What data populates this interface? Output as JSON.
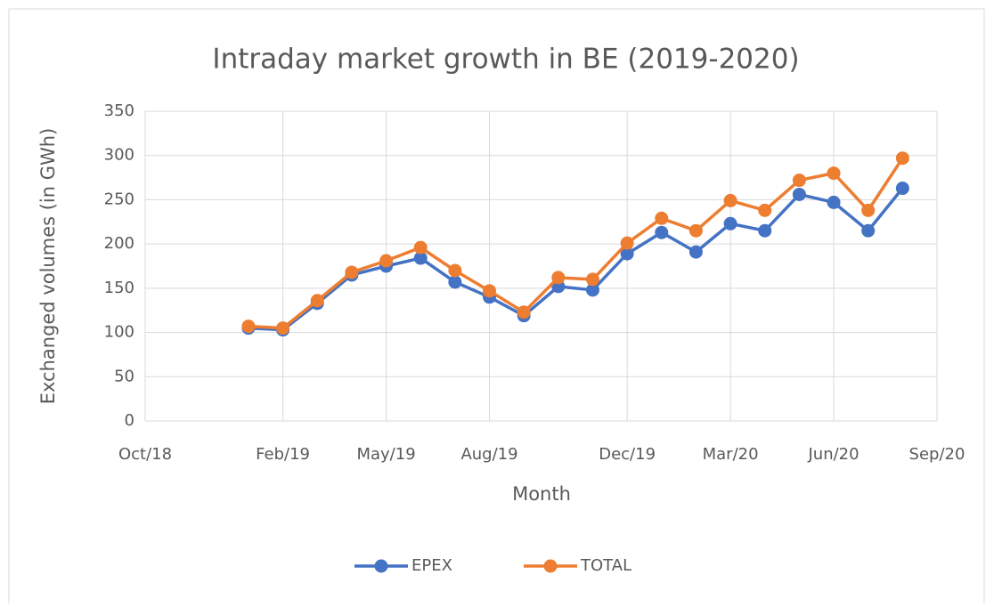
{
  "chart_data": {
    "type": "line",
    "title": "Intraday market growth in BE (2019-2020)",
    "xlabel": "Month",
    "ylabel": "Exchanged volumes (in GWh)",
    "x": [
      "2019-01",
      "2019-02",
      "2019-03",
      "2019-04",
      "2019-05",
      "2019-06",
      "2019-07",
      "2019-08",
      "2019-09",
      "2019-10",
      "2019-11",
      "2019-12",
      "2020-01",
      "2020-02",
      "2020-03",
      "2020-04",
      "2020-05",
      "2020-06",
      "2020-07",
      "2020-08"
    ],
    "series": [
      {
        "name": "EPEX",
        "color": "#4472c4",
        "values": [
          105,
          103,
          133,
          165,
          175,
          184,
          157,
          140,
          119,
          152,
          148,
          189,
          213,
          191,
          223,
          215,
          256,
          247,
          215,
          263
        ]
      },
      {
        "name": "TOTAL",
        "color": "#ed7d31",
        "values": [
          107,
          105,
          136,
          168,
          181,
          196,
          170,
          147,
          123,
          162,
          160,
          201,
          229,
          215,
          249,
          238,
          272,
          280,
          238,
          297
        ]
      }
    ],
    "xlim": [
      "2018-10",
      "2020-09"
    ],
    "xticks": [
      {
        "value": "2018-10",
        "label": "Oct/18"
      },
      {
        "value": "2019-02",
        "label": "Feb/19"
      },
      {
        "value": "2019-05",
        "label": "May/19"
      },
      {
        "value": "2019-08",
        "label": "Aug/19"
      },
      {
        "value": "2019-12",
        "label": "Dec/19"
      },
      {
        "value": "2020-03",
        "label": "Mar/20"
      },
      {
        "value": "2020-06",
        "label": "Jun/20"
      },
      {
        "value": "2020-09",
        "label": "Sep/20"
      }
    ],
    "ylim": [
      0,
      350
    ],
    "yticks": [
      0,
      50,
      100,
      150,
      200,
      250,
      300,
      350
    ],
    "grid": true,
    "legend": "bottom"
  }
}
